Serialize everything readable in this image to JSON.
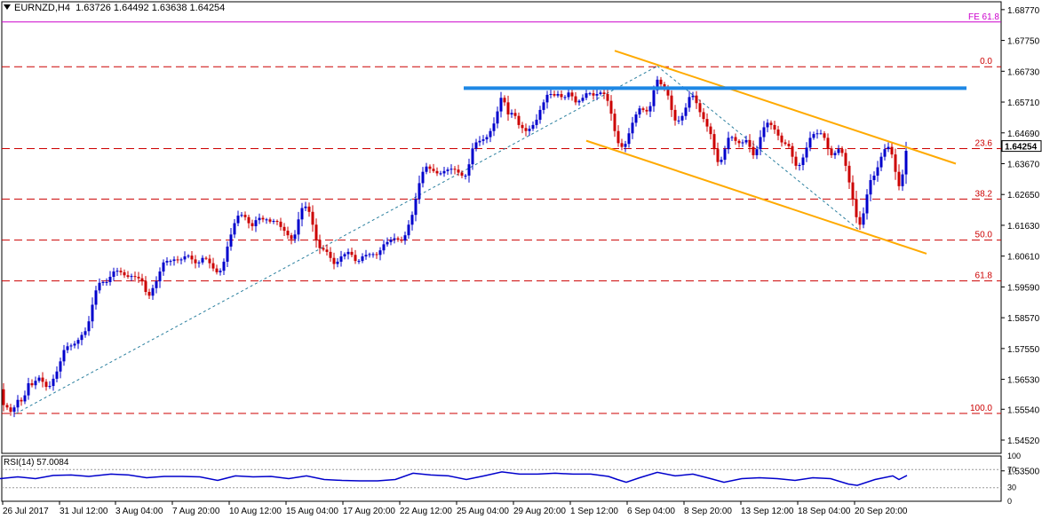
{
  "header": {
    "symbol": "EURNZD,H4",
    "ohlc": "1.63726 1.64492 1.63638 1.64254"
  },
  "rsi_header": "RSI(14) 57.0084",
  "last_price_label": "1.64254",
  "colors": {
    "bull": "#0000cc",
    "bear": "#cc0000",
    "fib": "#cc0000",
    "fe": "#cc00cc",
    "channel": "#ffaa00",
    "resistance": "#1e88e5",
    "trend": "#2a7f9e",
    "rsi": "#0000cc"
  },
  "chart_data": {
    "type": "candlestick",
    "ylim": [
      1.5408,
      1.6903
    ],
    "y_ticks": [
      "1.68770",
      "1.67750",
      "1.66730",
      "1.65710",
      "1.64690",
      "1.63670",
      "1.62650",
      "1.61630",
      "1.60610",
      "1.59590",
      "1.58570",
      "1.57550",
      "1.56530",
      "1.55540",
      "1.54520",
      "1.53500"
    ],
    "x_ticks": [
      "26 Jul 2017",
      "31 Jul 12:00",
      "3 Aug 04:00",
      "7 Aug 20:00",
      "10 Aug 12:00",
      "15 Aug 04:00",
      "17 Aug 20:00",
      "22 Aug 12:00",
      "25 Aug 04:00",
      "29 Aug 20:00",
      "1 Sep 12:00",
      "6 Sep 04:00",
      "8 Sep 20:00",
      "13 Sep 12:00",
      "18 Sep 04:00",
      "20 Sep 20:00"
    ],
    "last_price": 1.64254,
    "close_path": [
      [
        0,
        1.562
      ],
      [
        4,
        1.5568
      ],
      [
        8,
        1.556
      ],
      [
        11,
        1.5542
      ],
      [
        16,
        1.556
      ],
      [
        20,
        1.5585
      ],
      [
        24,
        1.558
      ],
      [
        28,
        1.56
      ],
      [
        33,
        1.565
      ],
      [
        37,
        1.5628
      ],
      [
        41,
        1.5655
      ],
      [
        45,
        1.566
      ],
      [
        49,
        1.564
      ],
      [
        54,
        1.562
      ],
      [
        58,
        1.5642
      ],
      [
        62,
        1.5668
      ],
      [
        66,
        1.569
      ],
      [
        70,
        1.5735
      ],
      [
        74,
        1.5765
      ],
      [
        78,
        1.576
      ],
      [
        82,
        1.577
      ],
      [
        86,
        1.5772
      ],
      [
        90,
        1.5795
      ],
      [
        94,
        1.5805
      ],
      [
        98,
        1.582
      ],
      [
        102,
        1.587
      ],
      [
        106,
        1.593
      ],
      [
        110,
        1.5965
      ],
      [
        114,
        1.598
      ],
      [
        118,
        1.597
      ],
      [
        122,
        1.598
      ],
      [
        126,
        1.6005
      ],
      [
        130,
        1.6015
      ],
      [
        134,
        1.601
      ],
      [
        138,
        1.6005
      ],
      [
        142,
        1.599
      ],
      [
        146,
        1.5995
      ],
      [
        150,
        1.5995
      ],
      [
        154,
        1.599
      ],
      [
        158,
        1.5985
      ],
      [
        162,
        1.597
      ],
      [
        166,
        1.5915
      ],
      [
        170,
        1.5945
      ],
      [
        174,
        1.5965
      ],
      [
        178,
        1.599
      ],
      [
        182,
        1.603
      ],
      [
        186,
        1.605
      ],
      [
        190,
        1.604
      ],
      [
        194,
        1.605
      ],
      [
        198,
        1.605
      ],
      [
        202,
        1.6045
      ],
      [
        206,
        1.6055
      ],
      [
        210,
        1.6065
      ],
      [
        214,
        1.606
      ],
      [
        218,
        1.604
      ],
      [
        222,
        1.6035
      ],
      [
        226,
        1.6045
      ],
      [
        230,
        1.6065
      ],
      [
        234,
        1.604
      ],
      [
        238,
        1.6035
      ],
      [
        242,
        1.6005
      ],
      [
        246,
        1.601
      ],
      [
        250,
        1.6015
      ],
      [
        254,
        1.607
      ],
      [
        258,
        1.6115
      ],
      [
        262,
        1.615
      ],
      [
        266,
        1.619
      ],
      [
        270,
        1.62
      ],
      [
        274,
        1.6195
      ],
      [
        278,
        1.6185
      ],
      [
        282,
        1.6155
      ],
      [
        286,
        1.6165
      ],
      [
        290,
        1.6195
      ],
      [
        294,
        1.618
      ],
      [
        298,
        1.6185
      ],
      [
        302,
        1.618
      ],
      [
        306,
        1.617
      ],
      [
        310,
        1.6185
      ],
      [
        314,
        1.6165
      ],
      [
        318,
        1.615
      ],
      [
        322,
        1.614
      ],
      [
        326,
        1.612
      ],
      [
        330,
        1.6115
      ],
      [
        334,
        1.615
      ],
      [
        338,
        1.6215
      ],
      [
        342,
        1.6225
      ],
      [
        346,
        1.6225
      ],
      [
        350,
        1.619
      ],
      [
        354,
        1.614
      ],
      [
        358,
        1.609
      ],
      [
        362,
        1.6085
      ],
      [
        366,
        1.608
      ],
      [
        370,
        1.607
      ],
      [
        374,
        1.604
      ],
      [
        378,
        1.603
      ],
      [
        382,
        1.6055
      ],
      [
        386,
        1.6065
      ],
      [
        390,
        1.607
      ],
      [
        394,
        1.608
      ],
      [
        398,
        1.605
      ],
      [
        402,
        1.604
      ],
      [
        406,
        1.605
      ],
      [
        410,
        1.607
      ],
      [
        414,
        1.606
      ],
      [
        418,
        1.6075
      ],
      [
        422,
        1.606
      ],
      [
        426,
        1.607
      ],
      [
        430,
        1.609
      ],
      [
        434,
        1.611
      ],
      [
        438,
        1.6105
      ],
      [
        442,
        1.6125
      ],
      [
        446,
        1.6115
      ],
      [
        450,
        1.6115
      ],
      [
        454,
        1.611
      ],
      [
        458,
        1.615
      ],
      [
        462,
        1.618
      ],
      [
        466,
        1.6215
      ],
      [
        470,
        1.6285
      ],
      [
        474,
        1.632
      ],
      [
        478,
        1.636
      ],
      [
        482,
        1.6355
      ],
      [
        486,
        1.6345
      ],
      [
        490,
        1.634
      ],
      [
        494,
        1.633
      ],
      [
        498,
        1.634
      ],
      [
        502,
        1.6345
      ],
      [
        506,
        1.635
      ],
      [
        510,
        1.635
      ],
      [
        514,
        1.6345
      ],
      [
        518,
        1.633
      ],
      [
        522,
        1.6325
      ],
      [
        526,
        1.633
      ],
      [
        530,
        1.64
      ],
      [
        534,
        1.6435
      ],
      [
        538,
        1.644
      ],
      [
        542,
        1.6445
      ],
      [
        546,
        1.645
      ],
      [
        550,
        1.646
      ],
      [
        554,
        1.649
      ],
      [
        558,
        1.651
      ],
      [
        562,
        1.657
      ],
      [
        566,
        1.66
      ],
      [
        570,
        1.654
      ],
      [
        574,
        1.652
      ],
      [
        578,
        1.655
      ],
      [
        582,
        1.65
      ],
      [
        586,
        1.649
      ],
      [
        590,
        1.648
      ],
      [
        594,
        1.647
      ],
      [
        598,
        1.6495
      ],
      [
        602,
        1.6495
      ],
      [
        606,
        1.653
      ],
      [
        610,
        1.656
      ],
      [
        614,
        1.658
      ],
      [
        618,
        1.661
      ],
      [
        622,
        1.6585
      ],
      [
        626,
        1.66
      ],
      [
        630,
        1.6595
      ],
      [
        634,
        1.658
      ],
      [
        638,
        1.6595
      ],
      [
        642,
        1.661
      ],
      [
        646,
        1.657
      ],
      [
        650,
        1.657
      ],
      [
        654,
        1.658
      ],
      [
        658,
        1.659
      ],
      [
        662,
        1.661
      ],
      [
        666,
        1.659
      ],
      [
        670,
        1.6595
      ],
      [
        674,
        1.66
      ],
      [
        678,
        1.6605
      ],
      [
        682,
        1.659
      ],
      [
        686,
        1.656
      ],
      [
        690,
        1.6505
      ],
      [
        694,
        1.6445
      ],
      [
        698,
        1.6425
      ],
      [
        702,
        1.642
      ],
      [
        706,
        1.6445
      ],
      [
        710,
        1.649
      ],
      [
        714,
        1.6515
      ],
      [
        718,
        1.6545
      ],
      [
        722,
        1.6555
      ],
      [
        726,
        1.6535
      ],
      [
        730,
        1.6545
      ],
      [
        734,
        1.657
      ],
      [
        738,
        1.665
      ],
      [
        742,
        1.664
      ],
      [
        746,
        1.662
      ],
      [
        750,
        1.6615
      ],
      [
        754,
        1.657
      ],
      [
        758,
        1.652
      ],
      [
        762,
        1.65
      ],
      [
        766,
        1.652
      ],
      [
        770,
        1.653
      ],
      [
        774,
        1.6575
      ],
      [
        778,
        1.66
      ],
      [
        782,
        1.6585
      ],
      [
        786,
        1.655
      ],
      [
        790,
        1.6525
      ],
      [
        794,
        1.6505
      ],
      [
        798,
        1.6475
      ],
      [
        802,
        1.6455
      ],
      [
        806,
        1.6375
      ],
      [
        810,
        1.637
      ],
      [
        814,
        1.639
      ],
      [
        818,
        1.644
      ],
      [
        822,
        1.6465
      ],
      [
        826,
        1.6445
      ],
      [
        830,
        1.644
      ],
      [
        834,
        1.643
      ],
      [
        838,
        1.6445
      ],
      [
        842,
        1.6445
      ],
      [
        846,
        1.64
      ],
      [
        850,
        1.639
      ],
      [
        854,
        1.644
      ],
      [
        858,
        1.647
      ],
      [
        862,
        1.6505
      ],
      [
        866,
        1.65
      ],
      [
        870,
        1.649
      ],
      [
        874,
        1.647
      ],
      [
        878,
        1.645
      ],
      [
        882,
        1.6425
      ],
      [
        886,
        1.644
      ],
      [
        890,
        1.641
      ],
      [
        894,
        1.637
      ],
      [
        898,
        1.635
      ],
      [
        902,
        1.6375
      ],
      [
        906,
        1.64
      ],
      [
        910,
        1.644
      ],
      [
        914,
        1.6465
      ],
      [
        918,
        1.6465
      ],
      [
        922,
        1.647
      ],
      [
        926,
        1.6465
      ],
      [
        930,
        1.644
      ],
      [
        934,
        1.6395
      ],
      [
        938,
        1.6395
      ],
      [
        942,
        1.641
      ],
      [
        946,
        1.642
      ],
      [
        950,
        1.6385
      ],
      [
        954,
        1.6335
      ],
      [
        958,
        1.6275
      ],
      [
        962,
        1.6225
      ],
      [
        966,
        1.6155
      ],
      [
        970,
        1.6175
      ],
      [
        974,
        1.623
      ],
      [
        978,
        1.63
      ],
      [
        982,
        1.6325
      ],
      [
        986,
        1.633
      ],
      [
        990,
        1.638
      ],
      [
        994,
        1.64
      ],
      [
        998,
        1.643
      ],
      [
        1002,
        1.6415
      ],
      [
        1006,
        1.638
      ],
      [
        1010,
        1.63
      ],
      [
        1014,
        1.6285
      ],
      [
        1018,
        1.6378
      ],
      [
        1021,
        1.64254
      ]
    ],
    "fib_levels": [
      {
        "label": "0.0",
        "value": 1.6688
      },
      {
        "label": "23.6",
        "value": 1.6417
      },
      {
        "label": "38.2",
        "value": 1.625
      },
      {
        "label": "50.0",
        "value": 1.6114
      },
      {
        "label": "61.8",
        "value": 1.5979
      },
      {
        "label": "100.0",
        "value": 1.554
      }
    ],
    "fe_level": {
      "label": "FE 61.8",
      "value": 1.6836
    },
    "resistance": {
      "x1": 522,
      "x2": 1088,
      "value": 1.6617
    },
    "channel_upper": [
      [
        692,
        1.6741
      ],
      [
        1076,
        1.6367
      ]
    ],
    "channel_lower": [
      [
        660,
        1.6443
      ],
      [
        1043,
        1.6069
      ]
    ],
    "trend_up": [
      [
        18,
        1.554
      ],
      [
        740,
        1.669
      ]
    ],
    "trend_down": [
      [
        740,
        1.669
      ],
      [
        968,
        1.6145
      ]
    ],
    "rsi": {
      "ylim": [
        0,
        100
      ],
      "levels": [
        30,
        70
      ],
      "ticks": [
        "100",
        "70",
        "30",
        "0"
      ],
      "values": [
        [
          0,
          50
        ],
        [
          20,
          54
        ],
        [
          40,
          50
        ],
        [
          60,
          57
        ],
        [
          80,
          58
        ],
        [
          100,
          55
        ],
        [
          125,
          60
        ],
        [
          145,
          58
        ],
        [
          165,
          52
        ],
        [
          185,
          55
        ],
        [
          205,
          55
        ],
        [
          225,
          54
        ],
        [
          245,
          46
        ],
        [
          265,
          56
        ],
        [
          285,
          54
        ],
        [
          305,
          55
        ],
        [
          325,
          50
        ],
        [
          345,
          56
        ],
        [
          365,
          48
        ],
        [
          385,
          46
        ],
        [
          405,
          45
        ],
        [
          425,
          45
        ],
        [
          445,
          48
        ],
        [
          465,
          62
        ],
        [
          485,
          58
        ],
        [
          505,
          56
        ],
        [
          525,
          48
        ],
        [
          545,
          56
        ],
        [
          565,
          65
        ],
        [
          585,
          60
        ],
        [
          605,
          60
        ],
        [
          625,
          62
        ],
        [
          645,
          60
        ],
        [
          665,
          60
        ],
        [
          685,
          55
        ],
        [
          695,
          48
        ],
        [
          705,
          42
        ],
        [
          720,
          52
        ],
        [
          740,
          64
        ],
        [
          760,
          56
        ],
        [
          780,
          60
        ],
        [
          800,
          50
        ],
        [
          815,
          42
        ],
        [
          835,
          50
        ],
        [
          855,
          52
        ],
        [
          875,
          50
        ],
        [
          895,
          46
        ],
        [
          915,
          52
        ],
        [
          935,
          50
        ],
        [
          955,
          38
        ],
        [
          965,
          35
        ],
        [
          985,
          48
        ],
        [
          1005,
          56
        ],
        [
          1012,
          48
        ],
        [
          1021,
          57
        ]
      ]
    }
  }
}
